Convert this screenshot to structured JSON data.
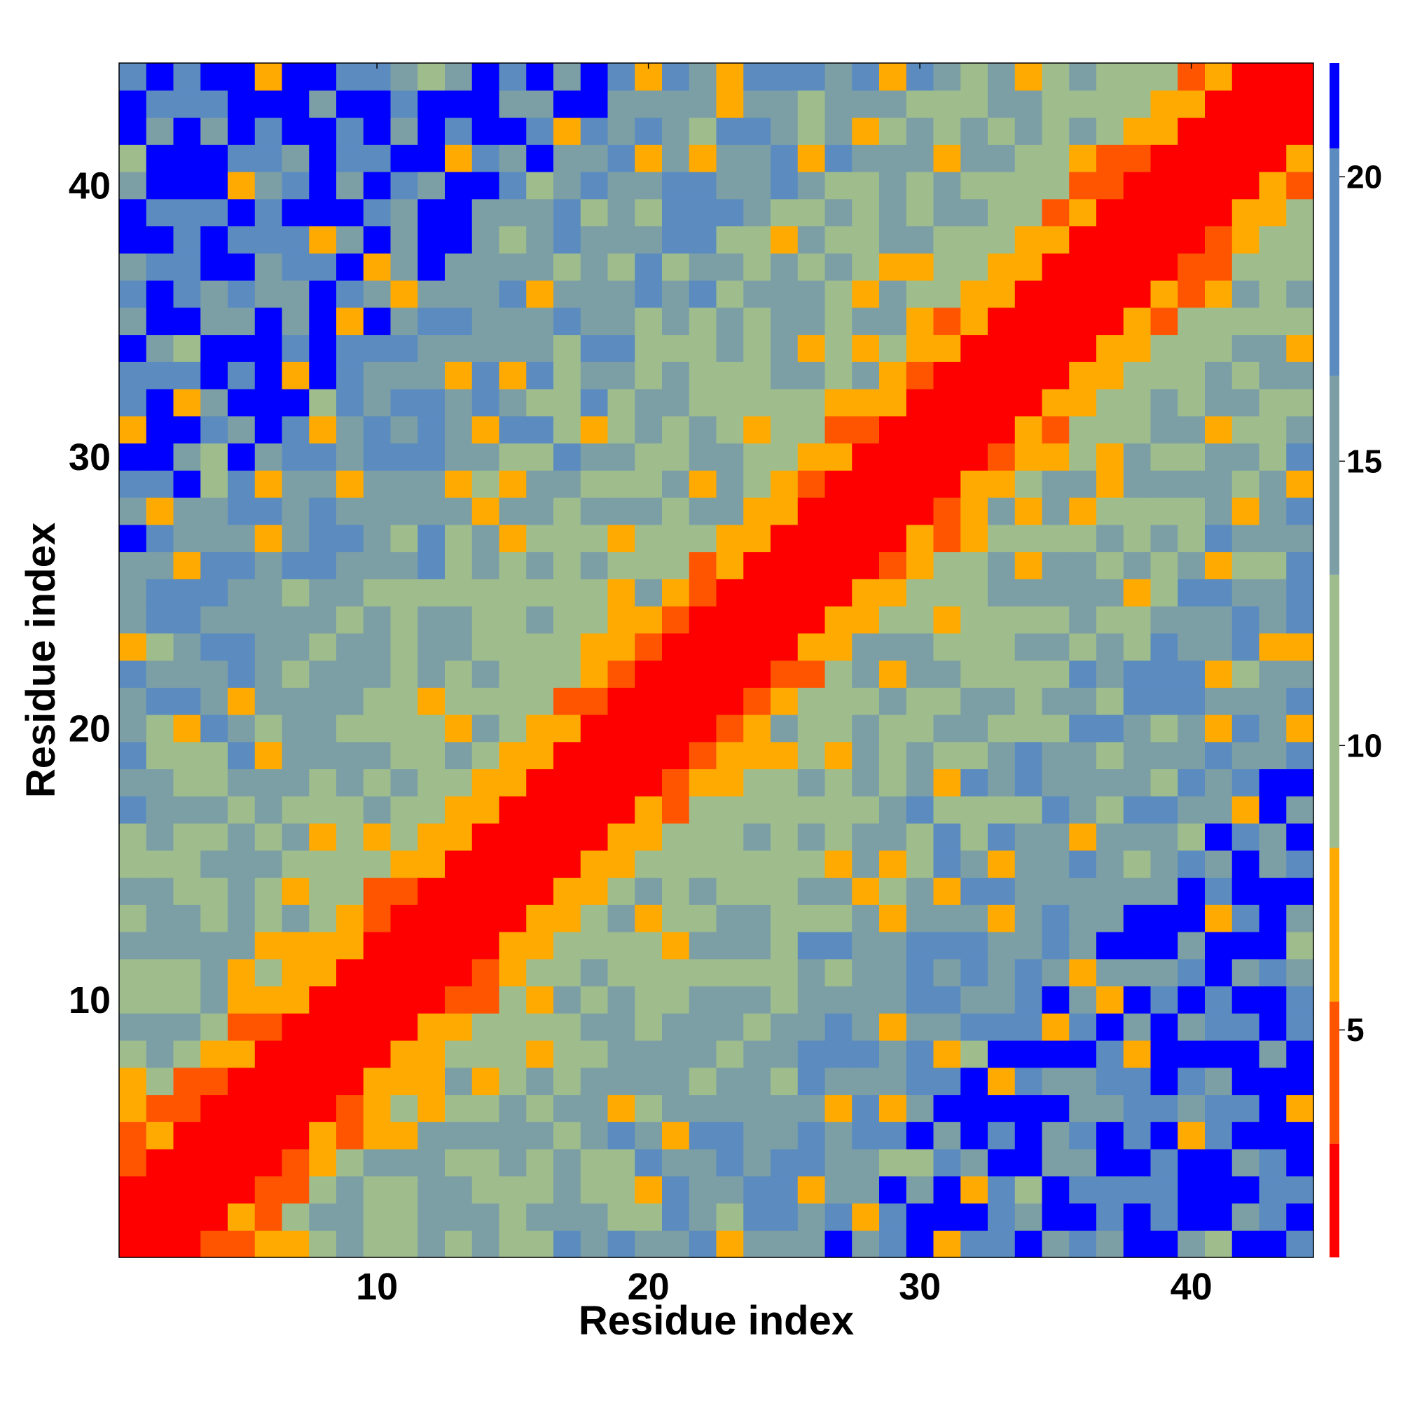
{
  "chart_data": {
    "type": "heatmap",
    "title": "",
    "xlabel": "Residue index",
    "ylabel": "Residue index",
    "n": 44,
    "xlim": [
      0.5,
      44.5
    ],
    "ylim": [
      0.5,
      44.5
    ],
    "xticks": [
      10,
      20,
      30,
      40
    ],
    "yticks": [
      10,
      20,
      30,
      40
    ],
    "colorbar": {
      "ticks": [
        5,
        10,
        15,
        20
      ],
      "range": [
        1,
        22
      ],
      "colors": [
        "#ff0000",
        "#ff5500",
        "#ffaa00",
        "#9fbc8c",
        "#7c9fa6",
        "#5b8bbf",
        "#0000ff"
      ],
      "thresholds": [
        3.0,
        5.5,
        8.2,
        13.0,
        16.5,
        20.5
      ]
    },
    "distance_model": {
      "diagonal_band": [
        0,
        1,
        2
      ],
      "near_band": [
        3,
        4
      ],
      "note_cells": []
    },
    "values": []
  }
}
